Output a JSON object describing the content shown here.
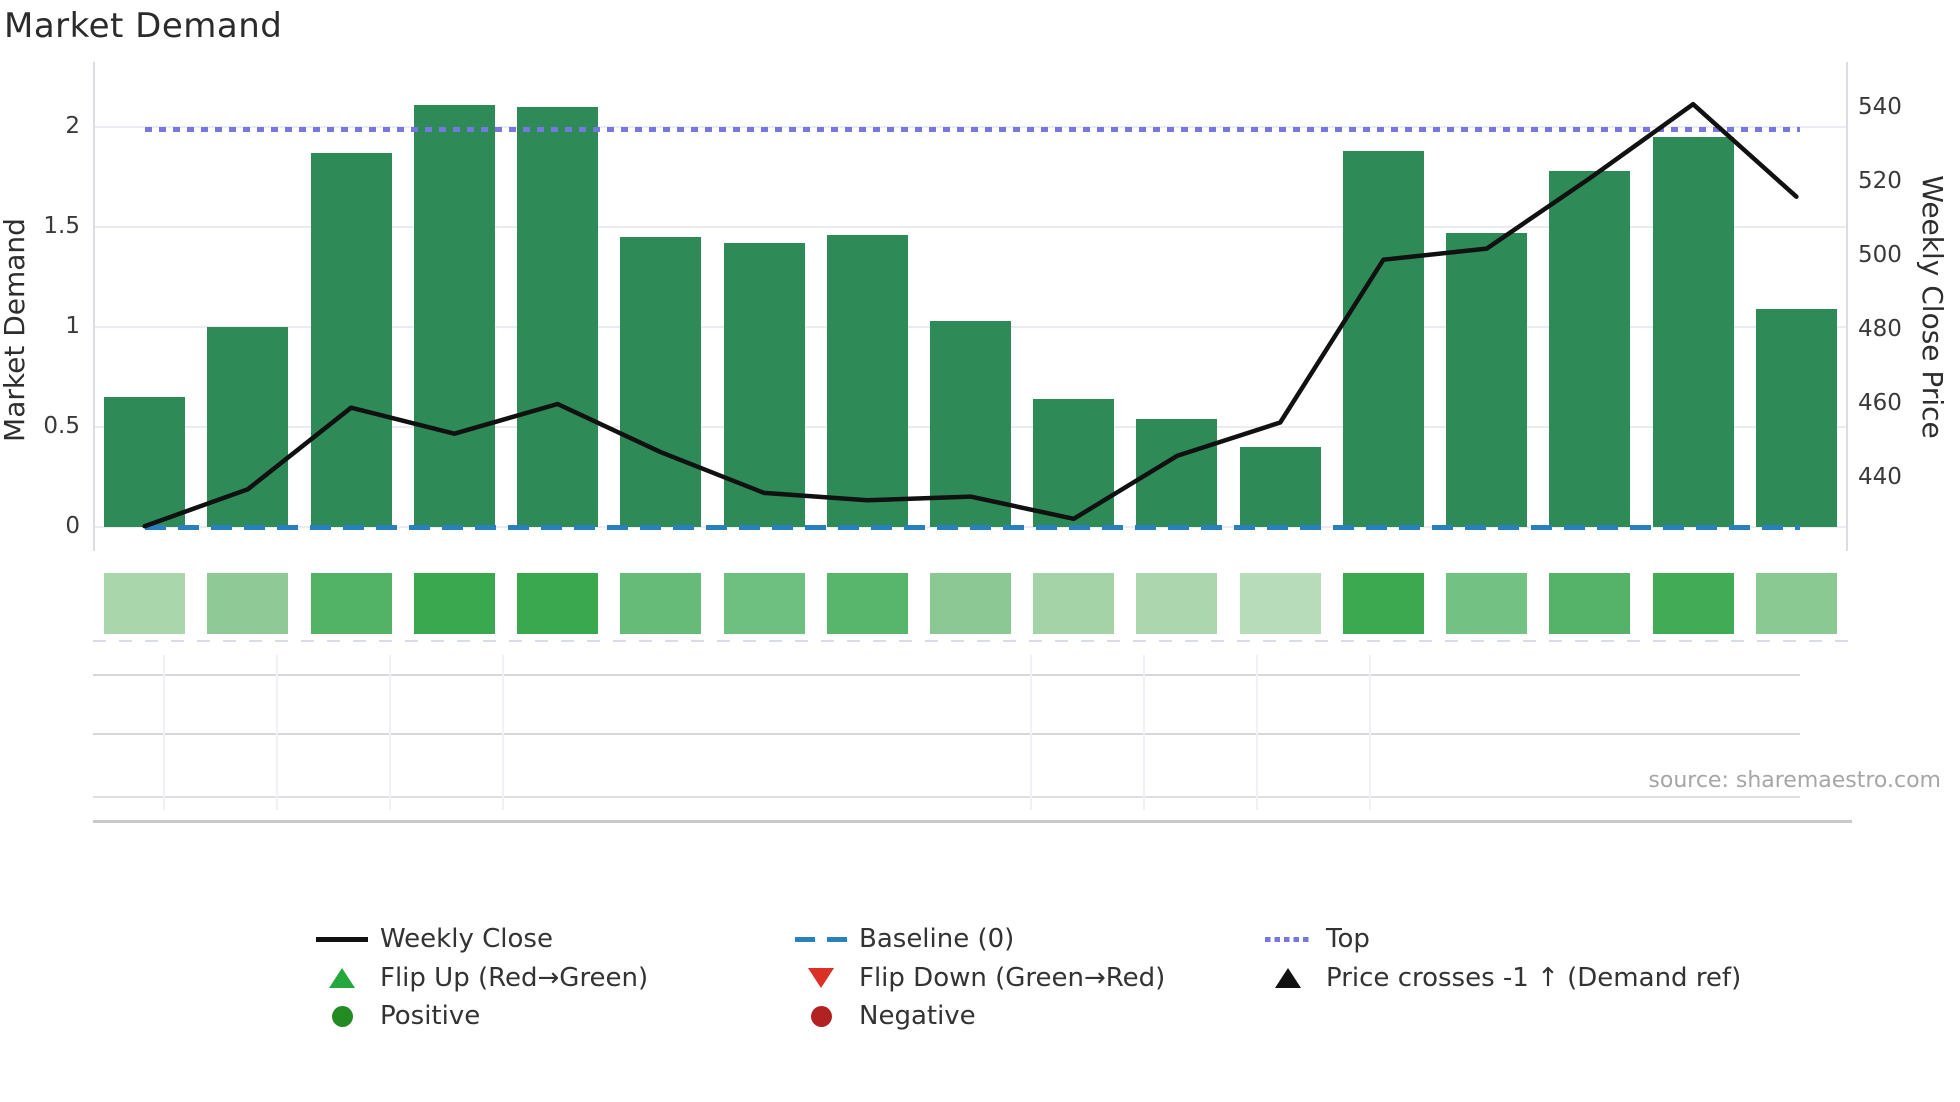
{
  "title": "Market Demand",
  "source": "source: sharemaestro.com",
  "colors": {
    "bar_green": "#2e8b57",
    "line_black": "#111111",
    "baseline_blue": "#2a7fbd",
    "top_purple": "#7678dd",
    "flip_up_green": "#24a83e",
    "flip_down_red": "#dc2f26",
    "positive_green": "#228b22",
    "negative_dark_red": "#b22222",
    "grid": "#ebebf3"
  },
  "chart_data": {
    "type": "bar+line",
    "title": "Market Demand",
    "n_points": 17,
    "x_tick_labels_visible": false,
    "grid": true,
    "legend_position": "bottom",
    "left_axis": {
      "label": "Market Demand",
      "ticks": [
        2,
        1.5,
        1,
        0.5,
        0
      ],
      "range": [
        -0.12,
        2.325
      ]
    },
    "right_axis": {
      "label": "Weekly Close Price",
      "ticks": [
        540,
        520,
        500,
        480,
        460,
        440
      ],
      "range": [
        420.3,
        552.4
      ]
    },
    "series": [
      {
        "name": "Market Demand",
        "type": "bar",
        "axis": "left",
        "color": "#2e8b57",
        "values": [
          0.65,
          1.0,
          1.87,
          2.11,
          2.1,
          1.45,
          1.42,
          1.46,
          1.03,
          0.64,
          0.54,
          0.4,
          1.88,
          1.47,
          1.78,
          1.95,
          1.09
        ]
      },
      {
        "name": "Weekly Close",
        "type": "line",
        "axis": "right",
        "color": "#111111",
        "values": [
          427,
          437,
          459,
          452,
          460,
          447,
          436,
          434,
          435,
          429,
          446,
          455,
          499,
          502,
          521,
          541,
          516
        ]
      }
    ],
    "reference_lines": [
      {
        "name": "Top",
        "axis": "left",
        "value": 1.99,
        "style": "dotted",
        "color": "#7678dd"
      },
      {
        "name": "Baseline (0)",
        "axis": "left",
        "value": 0,
        "style": "dashed",
        "color": "#2a7fbd"
      }
    ],
    "heatmap_strip": {
      "description": "demand intensity per period",
      "colors": [
        "#a9d6ab",
        "#8fc996",
        "#52b266",
        "#39a84e",
        "#3aa84e",
        "#66bb78",
        "#6ec080",
        "#58b56c",
        "#8cc893",
        "#a5d3a8",
        "#abd6ae",
        "#b7dcb9",
        "#3ca950",
        "#74c283",
        "#55b369",
        "#42ab55",
        "#8bc993"
      ]
    }
  },
  "legend": {
    "columns": [
      {
        "rows": [
          {
            "swatch": "black-line",
            "label": "Weekly Close"
          },
          {
            "swatch": "green-up-triangle",
            "label": "Flip Up (Red→Green)"
          },
          {
            "swatch": "green-circle",
            "label": "Positive"
          }
        ]
      },
      {
        "rows": [
          {
            "swatch": "blue-dashed-line",
            "label": "Baseline (0)"
          },
          {
            "swatch": "red-down-triangle",
            "label": "Flip Down (Green→Red)"
          },
          {
            "swatch": "dark-red-circle",
            "label": "Negative"
          }
        ]
      },
      {
        "rows": [
          {
            "swatch": "purple-dotted-line",
            "label": "Top"
          },
          {
            "swatch": "black-up-triangle",
            "label": "Price crosses -1 ↑ (Demand ref)"
          }
        ]
      }
    ]
  }
}
